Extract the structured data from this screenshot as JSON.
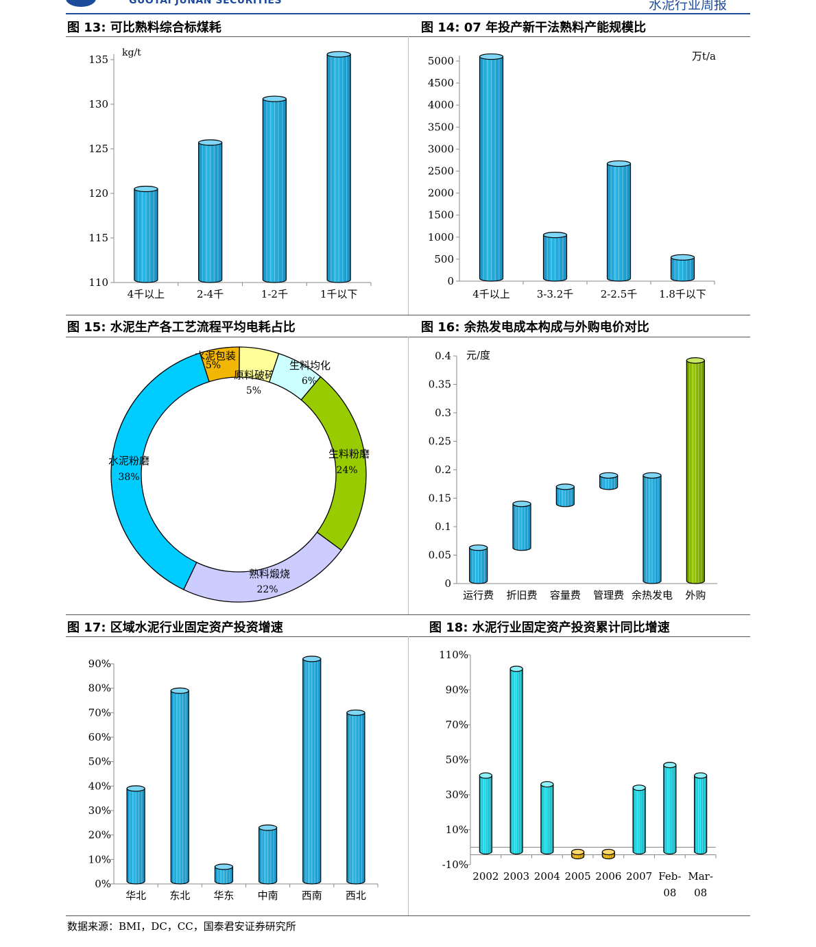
{
  "header": {
    "company": "GUOTAI JUNAN SECURITIES",
    "report": "水泥行业周报"
  },
  "source": "数据来源：BMI，DC，CC，国泰君安证券研究所",
  "colors": {
    "bar": "#29b8e6",
    "bar_light": "#9ee3fb",
    "green": "#99cc00",
    "cyan": "#14e1f0",
    "orange": "#f2b705",
    "brand": "#1c4b9c"
  },
  "chart_data": [
    {
      "id": "fig13",
      "figure_title": "图 13: 可比熟料综合标煤耗",
      "type": "bar",
      "unit": "kg/t",
      "categories": [
        "4千以上",
        "2-4千",
        "1-2千",
        "1千以下"
      ],
      "values": [
        120.5,
        125.7,
        130.6,
        135.6
      ],
      "ylim": [
        110,
        135
      ],
      "yticks": [
        110,
        115,
        120,
        125,
        130,
        135
      ]
    },
    {
      "id": "fig14",
      "figure_title": "图 14: 07 年投产新干法熟料产能规模比",
      "type": "bar",
      "unit": "万t/a",
      "categories": [
        "4千以上",
        "3-3.2千",
        "2-2.5千",
        "1.8千以下"
      ],
      "values": [
        5100,
        1050,
        2670,
        540
      ],
      "ylim": [
        0,
        5000
      ],
      "yticks": [
        0,
        500,
        1000,
        1500,
        2000,
        2500,
        3000,
        3500,
        4000,
        4500,
        5000
      ]
    },
    {
      "id": "fig15",
      "figure_title": "图 15: 水泥生产各工艺流程平均电耗占比",
      "type": "pie",
      "slices": [
        {
          "label": "水泥包装",
          "pct": "5%",
          "value": 5,
          "color": "#f2b705"
        },
        {
          "label": "原料破碎",
          "pct": "5%",
          "value": 5,
          "color": "#ffff99"
        },
        {
          "label": "生料均化",
          "pct": "6%",
          "value": 6,
          "color": "#ccffff"
        },
        {
          "label": "生料粉磨",
          "pct": "24%",
          "value": 24,
          "color": "#99cc00"
        },
        {
          "label": "熟料煅烧",
          "pct": "22%",
          "value": 22,
          "color": "#ccccff"
        },
        {
          "label": "水泥粉磨",
          "pct": "38%",
          "value": 38,
          "color": "#00ccff"
        }
      ]
    },
    {
      "id": "fig16",
      "figure_title": "图 16: 余热发电成本构成与外购电价对比",
      "type": "bar",
      "unit": "元/度",
      "categories": [
        "运行费",
        "折旧费",
        "容量费",
        "管理费",
        "余热发电",
        "外购"
      ],
      "bars": [
        {
          "from": 0,
          "to": 0.063
        },
        {
          "from": 0.063,
          "to": 0.14
        },
        {
          "from": 0.14,
          "to": 0.17
        },
        {
          "from": 0.17,
          "to": 0.19
        },
        {
          "from": 0,
          "to": 0.19
        },
        {
          "from": 0,
          "to": 0.392
        }
      ],
      "ylim": [
        0,
        0.4
      ],
      "yticks": [
        0,
        0.05,
        0.1,
        0.15,
        0.2,
        0.25,
        0.3,
        0.35,
        0.4
      ]
    },
    {
      "id": "fig17",
      "figure_title": "图 17: 区域水泥行业固定资产投资增速",
      "type": "bar",
      "categories": [
        "华北",
        "东北",
        "华东",
        "中南",
        "西南",
        "西北"
      ],
      "values": [
        0.39,
        0.79,
        0.07,
        0.23,
        0.92,
        0.7
      ],
      "ylim": [
        0,
        0.9
      ],
      "yticks": [
        "0%",
        "10%",
        "20%",
        "30%",
        "40%",
        "50%",
        "60%",
        "70%",
        "80%",
        "90%"
      ]
    },
    {
      "id": "fig18",
      "figure_title": "图 18: 水泥行业固定资产投资累计同比增速",
      "type": "bar",
      "categories": [
        "2002",
        "2003",
        "2004",
        "2005",
        "2006",
        "2007",
        "Feb-\n08",
        "Mar-\n08"
      ],
      "values": [
        0.41,
        1.02,
        0.36,
        -0.03,
        -0.015,
        0.34,
        0.47,
        0.41
      ],
      "ylim": [
        -0.1,
        1.1
      ],
      "yticks": [
        "-10%",
        "10%",
        "30%",
        "50%",
        "70%",
        "90%",
        "110%"
      ]
    }
  ]
}
